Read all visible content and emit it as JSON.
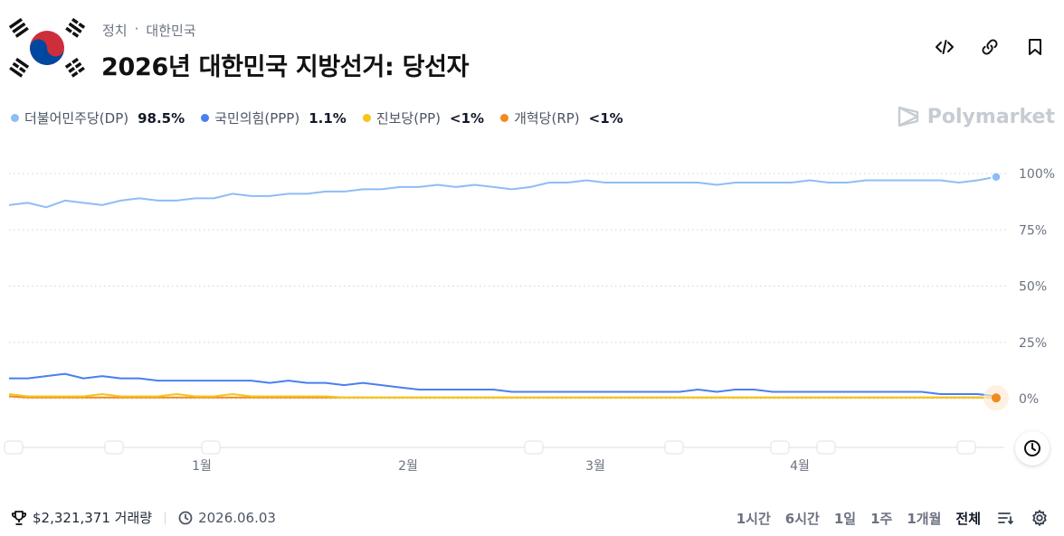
{
  "header": {
    "category": "정치",
    "separator": "·",
    "subcategory": "대한민국",
    "title": "2026년 대한민국 지방선거: 당선자",
    "icons": [
      "embed-code-icon",
      "link-icon",
      "bookmark-icon"
    ]
  },
  "brand": {
    "name": "Polymarket"
  },
  "legend": [
    {
      "name": "더불어민주당(DP)",
      "value": "98.5%",
      "color": "#8fbcf5"
    },
    {
      "name": "국민의힘(PPP)",
      "value": "1.1%",
      "color": "#4a7ff0"
    },
    {
      "name": "진보당(PP)",
      "value": "<1%",
      "color": "#f5c518"
    },
    {
      "name": "개혁당(RP)",
      "value": "<1%",
      "color": "#f28a1e"
    }
  ],
  "chart_data": {
    "type": "line",
    "x_tick_labels": [
      "1월",
      "2월",
      "3월",
      "4월"
    ],
    "y_tick_labels": [
      "100%",
      "75%",
      "50%",
      "25%",
      "0%"
    ],
    "ylim": [
      0,
      100
    ],
    "grid": true,
    "series": [
      {
        "name": "더불어민주당(DP)",
        "color": "#8fbcf5",
        "values": [
          86,
          87,
          85,
          88,
          87,
          86,
          88,
          89,
          88,
          88,
          89,
          89,
          91,
          90,
          90,
          91,
          91,
          92,
          92,
          93,
          93,
          94,
          94,
          95,
          94,
          95,
          94,
          93,
          94,
          96,
          96,
          97,
          96,
          96,
          96,
          96,
          96,
          96,
          95,
          96,
          96,
          96,
          96,
          97,
          96,
          96,
          97,
          97,
          97,
          97,
          97,
          96,
          97,
          98.5
        ]
      },
      {
        "name": "국민의힘(PPP)",
        "color": "#4a7ff0",
        "values": [
          9,
          9,
          10,
          11,
          9,
          10,
          9,
          9,
          8,
          8,
          8,
          8,
          8,
          8,
          7,
          8,
          7,
          7,
          6,
          7,
          6,
          5,
          4,
          4,
          4,
          4,
          4,
          3,
          3,
          3,
          3,
          3,
          3,
          3,
          3,
          3,
          3,
          4,
          3,
          4,
          4,
          3,
          3,
          3,
          3,
          3,
          3,
          3,
          3,
          3,
          2,
          2,
          2,
          1.1
        ]
      },
      {
        "name": "진보당(PP)",
        "color": "#f5c518",
        "values": [
          2,
          1,
          1,
          1,
          1,
          2,
          1,
          1,
          1,
          2,
          1,
          1,
          2,
          1,
          1,
          1,
          1,
          1,
          0.5,
          0.5,
          0.5,
          0.5,
          0.5,
          0.5,
          0.5,
          0.5,
          0.5,
          0.5,
          0.5,
          0.5,
          0.5,
          0.5,
          0.5,
          0.5,
          0.5,
          0.5,
          0.5,
          0.5,
          0.5,
          0.5,
          0.5,
          0.5,
          0.5,
          0.5,
          0.5,
          0.5,
          0.5,
          0.5,
          0.5,
          0.5,
          0.5,
          0.5,
          0.5,
          0.5
        ]
      },
      {
        "name": "개혁당(RP)",
        "color": "#f28a1e",
        "values": [
          1,
          0.5,
          0.5,
          0.5,
          0.5,
          0.5,
          0.5,
          0.5,
          0.5,
          0.5,
          0.5,
          0.5,
          0.5,
          0.5,
          0.5,
          0.5,
          0.5,
          0.5,
          0.5,
          0.5,
          0.5,
          0.5,
          0.5,
          0.5,
          0.5,
          0.5,
          0.5,
          0.5,
          0.5,
          0.5,
          0.5,
          0.5,
          0.5,
          0.5,
          0.5,
          0.5,
          0.5,
          0.5,
          0.5,
          0.5,
          0.5,
          0.5,
          0.5,
          0.5,
          0.5,
          0.5,
          0.5,
          0.5,
          0.5,
          0.5,
          0.5,
          0.5,
          0.5,
          0.3
        ]
      }
    ]
  },
  "footer": {
    "volume": "$2,321,371 거래량",
    "end_date": "2026.06.03"
  },
  "ranges": {
    "items": [
      "1시간",
      "6시간",
      "1일",
      "1주",
      "1개월",
      "전체"
    ],
    "active": "전체"
  }
}
